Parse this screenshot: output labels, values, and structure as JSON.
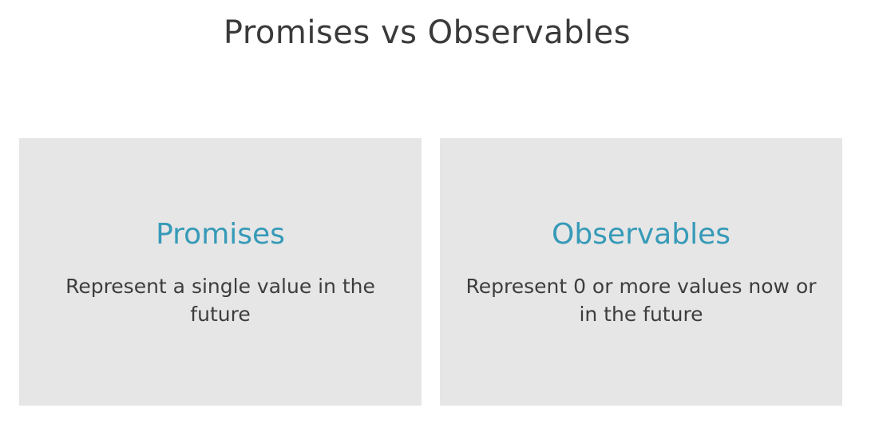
{
  "slide": {
    "title": "Promises vs Observables",
    "cards": [
      {
        "heading": "Promises",
        "body": "Represent a single value in the future"
      },
      {
        "heading": "Observables",
        "body": "Represent 0 or more values now or in the future"
      }
    ]
  },
  "colors": {
    "background": "#ffffff",
    "title_text": "#3a3a3a",
    "card_background": "#e6e6e6",
    "heading_accent": "#369ab8",
    "body_text": "#3d3d3d"
  }
}
